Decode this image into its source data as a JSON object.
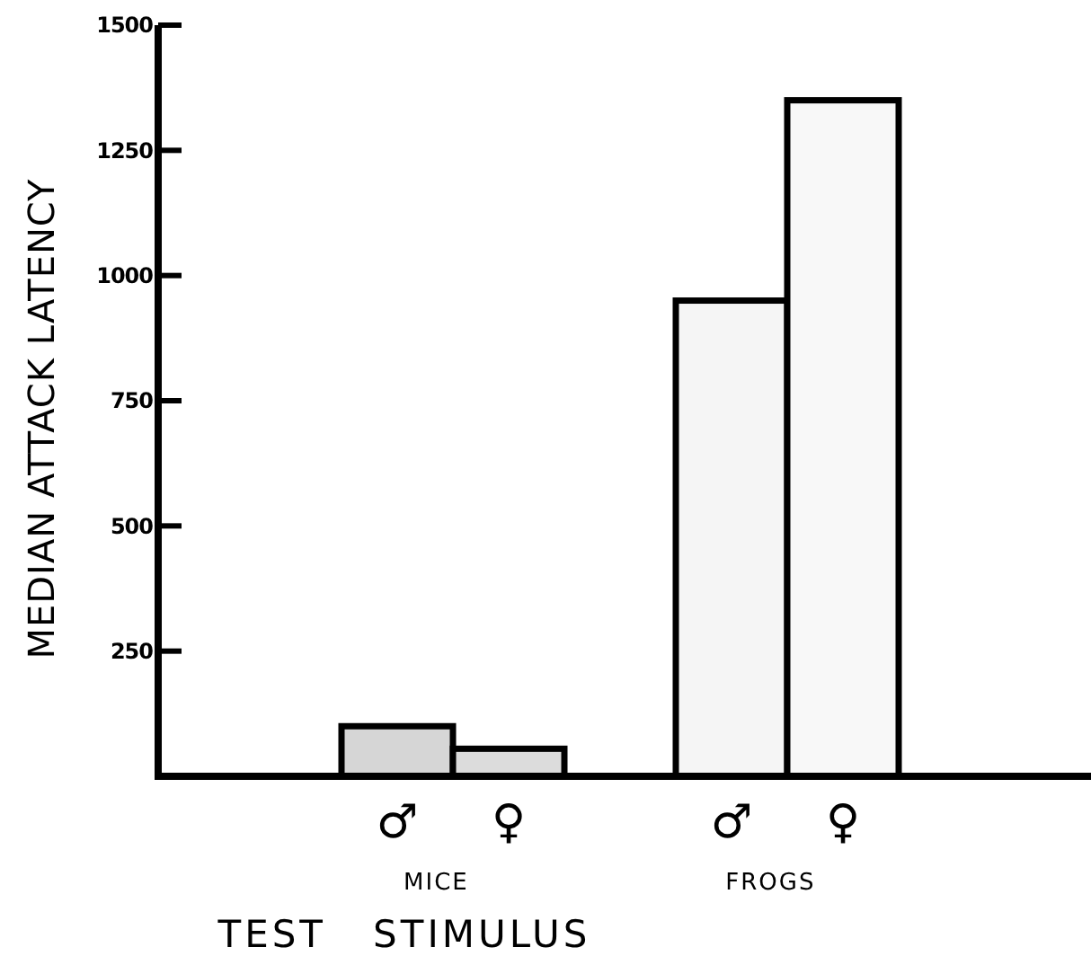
{
  "chart_data": {
    "type": "bar",
    "xlabel": "TEST   STIMULUS",
    "ylabel": "MEDIAN ATTACK LATENCY",
    "categories": [
      "♂",
      "♀",
      "♂",
      "♀"
    ],
    "values": [
      100,
      55,
      950,
      1350
    ],
    "colors": [
      "#d6d6d6",
      "#dcdcdc",
      "#f5f5f5",
      "#f8f8f8"
    ],
    "ylim": [
      0,
      1500
    ],
    "yticks": [
      250,
      500,
      750,
      1000,
      1250,
      1500
    ],
    "annotations": [
      "MICE",
      "FROGS"
    ]
  }
}
